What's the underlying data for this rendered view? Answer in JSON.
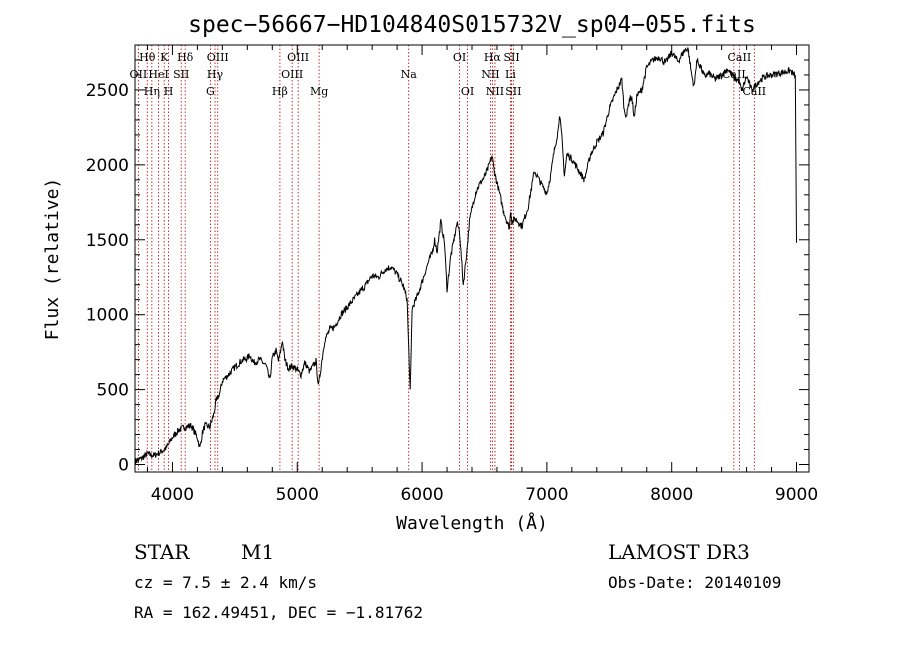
{
  "chart_data": {
    "type": "line",
    "title": "spec−56667−HD104840S015732V_sp04−055.fits",
    "xlabel": "Wavelength (Å)",
    "ylabel": "Flux (relative)",
    "xlim": [
      3700,
      9100
    ],
    "ylim": [
      -50,
      2800
    ],
    "x_ticks": [
      4000,
      5000,
      6000,
      7000,
      8000,
      9000
    ],
    "y_ticks": [
      0,
      500,
      1000,
      1500,
      2000,
      2500
    ],
    "grid": false,
    "series": [
      {
        "name": "spectrum",
        "x": [
          3700,
          3750,
          3800,
          3850,
          3900,
          3950,
          4000,
          4050,
          4100,
          4150,
          4200,
          4220,
          4240,
          4260,
          4300,
          4330,
          4350,
          4380,
          4400,
          4450,
          4500,
          4550,
          4600,
          4620,
          4650,
          4700,
          4750,
          4780,
          4800,
          4830,
          4850,
          4870,
          4880,
          4900,
          4930,
          4960,
          5000,
          5030,
          5060,
          5100,
          5150,
          5170,
          5190,
          5220,
          5260,
          5300,
          5350,
          5400,
          5450,
          5500,
          5550,
          5600,
          5650,
          5700,
          5750,
          5800,
          5850,
          5880,
          5895,
          5905,
          5920,
          5960,
          6000,
          6050,
          6080,
          6100,
          6120,
          6150,
          6180,
          6200,
          6230,
          6260,
          6280,
          6300,
          6330,
          6360,
          6380,
          6400,
          6430,
          6460,
          6500,
          6530,
          6560,
          6580,
          6600,
          6620,
          6650,
          6680,
          6700,
          6710,
          6720,
          6750,
          6800,
          6850,
          6900,
          6950,
          7000,
          7030,
          7060,
          7090,
          7100,
          7120,
          7140,
          7160,
          7200,
          7250,
          7300,
          7350,
          7400,
          7450,
          7500,
          7550,
          7600,
          7620,
          7640,
          7660,
          7680,
          7700,
          7720,
          7760,
          7800,
          7850,
          7900,
          7950,
          8000,
          8050,
          8100,
          8130,
          8160,
          8180,
          8200,
          8230,
          8260,
          8300,
          8350,
          8400,
          8450,
          8500,
          8540,
          8560,
          8600,
          8640,
          8660,
          8700,
          8750,
          8800,
          8850,
          8900,
          8950,
          8990,
          9000
        ],
        "y": [
          20,
          40,
          70,
          60,
          80,
          110,
          180,
          230,
          250,
          260,
          180,
          110,
          210,
          260,
          250,
          330,
          420,
          480,
          560,
          600,
          650,
          690,
          710,
          730,
          680,
          700,
          660,
          560,
          710,
          760,
          690,
          770,
          830,
          700,
          640,
          660,
          630,
          600,
          680,
          620,
          690,
          520,
          650,
          830,
          900,
          920,
          1000,
          1050,
          1100,
          1150,
          1200,
          1260,
          1250,
          1300,
          1320,
          1270,
          1190,
          1100,
          720,
          480,
          1040,
          1120,
          1220,
          1350,
          1410,
          1500,
          1420,
          1620,
          1480,
          1170,
          1390,
          1520,
          1610,
          1560,
          1200,
          1430,
          1620,
          1710,
          1820,
          1870,
          1920,
          1980,
          2060,
          1950,
          1880,
          1810,
          1700,
          1620,
          1580,
          1700,
          1620,
          1640,
          1590,
          1720,
          1960,
          1880,
          1810,
          1930,
          2100,
          2230,
          2340,
          2180,
          1930,
          2070,
          2040,
          1970,
          1900,
          2070,
          2150,
          2210,
          2370,
          2480,
          2570,
          2360,
          2330,
          2440,
          2450,
          2310,
          2460,
          2500,
          2650,
          2700,
          2720,
          2680,
          2750,
          2690,
          2760,
          2780,
          2600,
          2520,
          2700,
          2660,
          2590,
          2610,
          2570,
          2600,
          2640,
          2580,
          2560,
          2490,
          2590,
          2500,
          2520,
          2560,
          2590,
          2600,
          2610,
          2620,
          2630,
          2590,
          1480
        ]
      }
    ],
    "lines": [
      {
        "label": "Hθ",
        "x": 3798,
        "row": 1
      },
      {
        "label": "OII",
        "x": 3727,
        "row": 2
      },
      {
        "label": "Hη",
        "x": 3835,
        "row": 3
      },
      {
        "label": "HeI",
        "x": 3889,
        "row": 2
      },
      {
        "label": "K",
        "x": 3934,
        "row": 1
      },
      {
        "label": "H",
        "x": 3969,
        "row": 3
      },
      {
        "label": "SII",
        "x": 4070,
        "row": 2
      },
      {
        "label": "Hδ",
        "x": 4102,
        "row": 1
      },
      {
        "label": "OIII",
        "x": 4363,
        "row": 1
      },
      {
        "label": "Hγ",
        "x": 4341,
        "row": 2
      },
      {
        "label": "G",
        "x": 4304,
        "row": 3
      },
      {
        "label": "Hβ",
        "x": 4861,
        "row": 3
      },
      {
        "label": "OIII",
        "x": 5007,
        "row": 1
      },
      {
        "label": "OIII",
        "x": 4959,
        "row": 2
      },
      {
        "label": "Mg",
        "x": 5175,
        "row": 3
      },
      {
        "label": "Na",
        "x": 5893,
        "row": 2
      },
      {
        "label": "OI",
        "x": 6300,
        "row": 1
      },
      {
        "label": "OI",
        "x": 6364,
        "row": 3
      },
      {
        "label": "Hα",
        "x": 6563,
        "row": 1
      },
      {
        "label": "NII",
        "x": 6548,
        "row": 2
      },
      {
        "label": "NII",
        "x": 6584,
        "row": 3
      },
      {
        "label": "SII",
        "x": 6717,
        "row": 1
      },
      {
        "label": "Li",
        "x": 6708,
        "row": 2
      },
      {
        "label": "SII",
        "x": 6731,
        "row": 3
      },
      {
        "label": "CaII",
        "x": 8542,
        "row": 1
      },
      {
        "label": "CaII",
        "x": 8498,
        "row": 2
      },
      {
        "label": "CaII",
        "x": 8662,
        "row": 3
      }
    ]
  },
  "info": {
    "object_class": "STAR",
    "subclass": "M1",
    "survey": "LAMOST DR3",
    "cz": "cz = 7.5 ± 2.4 km/s",
    "obs_date": "Obs-Date: 20140109",
    "coords": "RA = 162.49451, DEC =  −1.81762"
  }
}
